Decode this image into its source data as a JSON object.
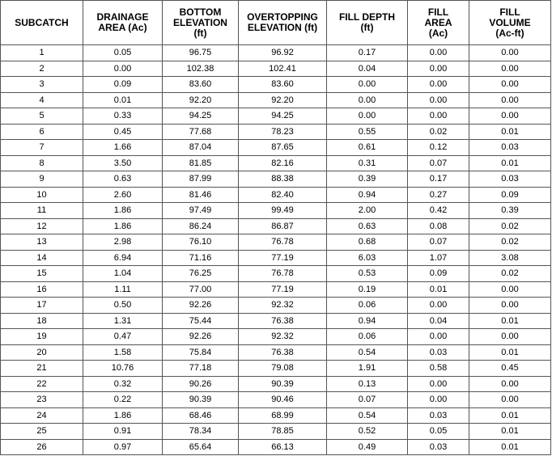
{
  "table": {
    "headers": [
      [
        "SUBCATCH"
      ],
      [
        "DRAINAGE",
        "AREA (Ac)"
      ],
      [
        "BOTTOM",
        "ELEVATION",
        "(ft)"
      ],
      [
        "OVERTOPPING",
        "ELEVATION (ft)"
      ],
      [
        "FILL DEPTH",
        "(ft)"
      ],
      [
        "FILL",
        "AREA",
        "(Ac)"
      ],
      [
        "FILL",
        "VOLUME",
        "(Ac-ft)"
      ]
    ],
    "rows": [
      [
        "1",
        "0.05",
        "96.75",
        "96.92",
        "0.17",
        "0.00",
        "0.00"
      ],
      [
        "2",
        "0.00",
        "102.38",
        "102.41",
        "0.04",
        "0.00",
        "0.00"
      ],
      [
        "3",
        "0.09",
        "83.60",
        "83.60",
        "0.00",
        "0.00",
        "0.00"
      ],
      [
        "4",
        "0.01",
        "92.20",
        "92.20",
        "0.00",
        "0.00",
        "0.00"
      ],
      [
        "5",
        "0.33",
        "94.25",
        "94.25",
        "0.00",
        "0.00",
        "0.00"
      ],
      [
        "6",
        "0.45",
        "77.68",
        "78.23",
        "0.55",
        "0.02",
        "0.01"
      ],
      [
        "7",
        "1.66",
        "87.04",
        "87.65",
        "0.61",
        "0.12",
        "0.03"
      ],
      [
        "8",
        "3.50",
        "81.85",
        "82.16",
        "0.31",
        "0.07",
        "0.01"
      ],
      [
        "9",
        "0.63",
        "87.99",
        "88.38",
        "0.39",
        "0.17",
        "0.03"
      ],
      [
        "10",
        "2.60",
        "81.46",
        "82.40",
        "0.94",
        "0.27",
        "0.09"
      ],
      [
        "11",
        "1.86",
        "97.49",
        "99.49",
        "2.00",
        "0.42",
        "0.39"
      ],
      [
        "12",
        "1.86",
        "86.24",
        "86.87",
        "0.63",
        "0.08",
        "0.02"
      ],
      [
        "13",
        "2.98",
        "76.10",
        "76.78",
        "0.68",
        "0.07",
        "0.02"
      ],
      [
        "14",
        "6.94",
        "71.16",
        "77.19",
        "6.03",
        "1.07",
        "3.08"
      ],
      [
        "15",
        "1.04",
        "76.25",
        "76.78",
        "0.53",
        "0.09",
        "0.02"
      ],
      [
        "16",
        "1.11",
        "77.00",
        "77.19",
        "0.19",
        "0.01",
        "0.00"
      ],
      [
        "17",
        "0.50",
        "92.26",
        "92.32",
        "0.06",
        "0.00",
        "0.00"
      ],
      [
        "18",
        "1.31",
        "75.44",
        "76.38",
        "0.94",
        "0.04",
        "0.01"
      ],
      [
        "19",
        "0.47",
        "92.26",
        "92.32",
        "0.06",
        "0.00",
        "0.00"
      ],
      [
        "20",
        "1.58",
        "75.84",
        "76.38",
        "0.54",
        "0.03",
        "0.01"
      ],
      [
        "21",
        "10.76",
        "77.18",
        "79.08",
        "1.91",
        "0.58",
        "0.45"
      ],
      [
        "22",
        "0.32",
        "90.26",
        "90.39",
        "0.13",
        "0.00",
        "0.00"
      ],
      [
        "23",
        "0.22",
        "90.39",
        "90.46",
        "0.07",
        "0.00",
        "0.00"
      ],
      [
        "24",
        "1.86",
        "68.46",
        "68.99",
        "0.54",
        "0.03",
        "0.01"
      ],
      [
        "25",
        "0.91",
        "78.34",
        "78.85",
        "0.52",
        "0.05",
        "0.01"
      ],
      [
        "26",
        "0.97",
        "65.64",
        "66.13",
        "0.49",
        "0.03",
        "0.01"
      ]
    ]
  }
}
